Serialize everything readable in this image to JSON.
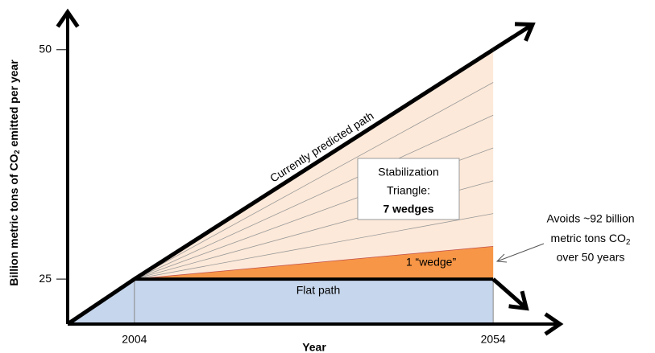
{
  "chart_data": {
    "type": "wedge",
    "xlabel": "Year",
    "ylabel": {
      "text": "Billion metric tons of CO",
      "sub": "2",
      "rest": "emitted per year"
    },
    "xlim": [
      1994.7,
      2063.3
    ],
    "ylim": [
      20.1,
      54.1
    ],
    "xticks": [
      2004,
      2054
    ],
    "yticks": [
      25,
      50
    ],
    "series": [
      {
        "name": "Currently predicted path",
        "color": "#000000",
        "x": [
          1994.7,
          2004,
          2054
        ],
        "values": [
          20.1,
          25,
          50
        ]
      },
      {
        "name": "Flat path",
        "color": "#000000",
        "x": [
          2004,
          2054
        ],
        "values": [
          25,
          25
        ]
      }
    ],
    "wedge_ends": [
      28.57,
      32.14,
      35.71,
      39.29,
      42.86,
      46.43
    ],
    "triangle_color": "#fde9d9",
    "wedge_color": "#f79646",
    "flat_color": "#c6d6ec",
    "triangle_label": [
      "Stabilization",
      "Triangle:",
      "7 wedges"
    ],
    "wedge_label": "1 “wedge”",
    "note": {
      "lines": [
        "Avoids ~92 billion",
        "metric tons CO"
      ],
      "sub": "2",
      "last": "over 50 years"
    }
  }
}
